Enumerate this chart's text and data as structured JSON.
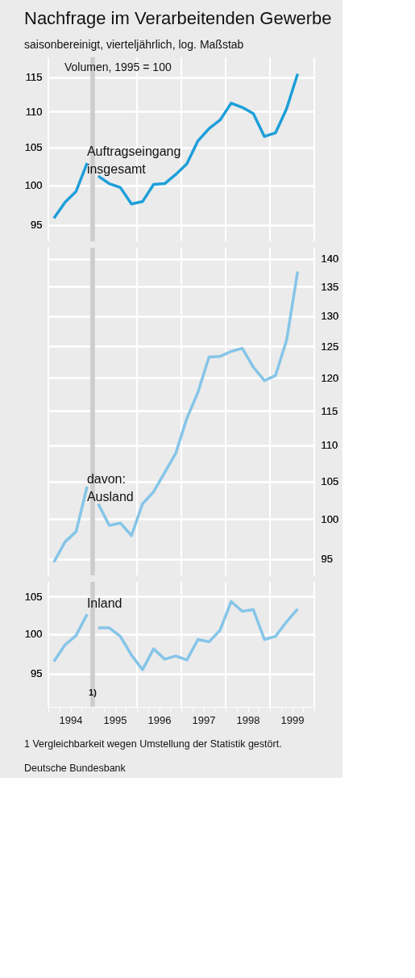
{
  "chart_data": [
    {
      "type": "line",
      "title": "Nachfrage im Verarbeitenden Gewerbe",
      "subtitle": "saisonbereinigt, vierteljährlich, log. Maßstab",
      "ylabel": "Volumen, 1995 = 100",
      "x": [
        1994.125,
        1994.375,
        1994.625,
        1994.875,
        1995.0,
        1995.125,
        1995.375,
        1995.625,
        1995.875,
        1996.125,
        1996.375,
        1996.625,
        1996.875,
        1997.125,
        1997.375,
        1997.625,
        1997.875,
        1998.125,
        1998.375,
        1998.625,
        1998.875,
        1999.125,
        1999.375,
        1999.625
      ],
      "xlim": [
        1994,
        2000
      ],
      "xticks": [
        {
          "value": 1994,
          "label": null
        },
        {
          "value": 1996,
          "label": null
        },
        {
          "value": 1997,
          "label": null
        },
        {
          "value": 1998,
          "label": null
        },
        {
          "value": 1999,
          "label": null
        },
        {
          "value": 2000,
          "label": null
        }
      ],
      "ylim": [
        93,
        118
      ],
      "yticks": [
        95,
        100,
        105,
        110,
        115
      ],
      "log": true,
      "grid": true,
      "tick_labels": "y",
      "bands": [
        {
          "axis": "x",
          "from": 1994.95,
          "to": 1995.05,
          "color": "#cccccc"
        }
      ],
      "series": [
        {
          "name": "Auftragseingang insgesamt",
          "color": "#1e9fd9",
          "values": [
            95.8,
            97.8,
            99.2,
            102.9,
            null,
            101.2,
            100.2,
            99.7,
            97.6,
            97.9,
            100.1,
            100.2,
            101.4,
            102.8,
            105.9,
            107.6,
            108.8,
            111.2,
            110.6,
            109.7,
            106.5,
            107.0,
            110.4,
            115.5
          ]
        }
      ]
    },
    {
      "type": "line",
      "annotations": [
        "davon:"
      ],
      "x": [
        1994.125,
        1994.375,
        1994.625,
        1994.875,
        1995.0,
        1995.125,
        1995.375,
        1995.625,
        1995.875,
        1996.125,
        1996.375,
        1996.625,
        1996.875,
        1997.125,
        1997.375,
        1997.625,
        1997.875,
        1998.125,
        1998.375,
        1998.625,
        1998.875,
        1999.125,
        1999.375,
        1999.625
      ],
      "xlim": [
        1994,
        2000
      ],
      "xticks": [
        {
          "value": 1994,
          "label": null
        },
        {
          "value": 1996,
          "label": null
        },
        {
          "value": 1997,
          "label": null
        },
        {
          "value": 1998,
          "label": null
        },
        {
          "value": 1999,
          "label": null
        },
        {
          "value": 2000,
          "label": null
        }
      ],
      "y2lim": [
        93,
        142
      ],
      "y2ticks": [
        95,
        100,
        105,
        110,
        115,
        120,
        125,
        130,
        135,
        140
      ],
      "log": "y2",
      "grid": true,
      "tick_labels": "y",
      "bands": [
        {
          "axis": "x",
          "from": 1994.95,
          "to": 1995.05,
          "color": "#cccccc"
        }
      ],
      "series": [
        {
          "name": "Ausland",
          "color": "#85c5e8",
          "axis": "y2",
          "values": [
            94.6,
            97.1,
            98.4,
            104.3,
            null,
            102.0,
            99.2,
            99.5,
            97.9,
            102.0,
            103.6,
            106.2,
            108.9,
            113.9,
            117.8,
            123.3,
            123.4,
            124.2,
            124.7,
            121.7,
            119.6,
            120.4,
            126.0,
            137.7
          ]
        }
      ]
    },
    {
      "type": "line",
      "annotations": [
        "1 Vergleichbarkeit wegen Umstellung der Statistik gestört.",
        "Deutsche Bundesbank"
      ],
      "x": [
        1994.125,
        1994.375,
        1994.625,
        1994.875,
        1995.0,
        1995.125,
        1995.375,
        1995.625,
        1995.875,
        1996.125,
        1996.375,
        1996.625,
        1996.875,
        1997.125,
        1997.375,
        1997.625,
        1997.875,
        1998.125,
        1998.375,
        1998.625,
        1998.875,
        1999.125,
        1999.375,
        1999.625
      ],
      "xlim": [
        1994,
        2000
      ],
      "xticks": [
        {
          "value": 1994,
          "label": null
        },
        {
          "value": 1994.25,
          "label": null
        },
        {
          "value": 1994.5,
          "label": "1994"
        },
        {
          "value": 1994.75,
          "label": null
        },
        {
          "value": 1995,
          "label": null
        },
        {
          "value": 1995.25,
          "label": null
        },
        {
          "value": 1995.5,
          "label": "1995"
        },
        {
          "value": 1995.75,
          "label": null
        },
        {
          "value": 1996,
          "label": null
        },
        {
          "value": 1996.25,
          "label": null
        },
        {
          "value": 1996.5,
          "label": "1996"
        },
        {
          "value": 1996.75,
          "label": null
        },
        {
          "value": 1997,
          "label": null
        },
        {
          "value": 1997.25,
          "label": null
        },
        {
          "value": 1997.5,
          "label": "1997"
        },
        {
          "value": 1997.75,
          "label": null
        },
        {
          "value": 1998,
          "label": null
        },
        {
          "value": 1998.25,
          "label": null
        },
        {
          "value": 1998.5,
          "label": "1998"
        },
        {
          "value": 1998.75,
          "label": null
        },
        {
          "value": 1999,
          "label": null
        },
        {
          "value": 1999.25,
          "label": null
        },
        {
          "value": 1999.5,
          "label": "1999"
        },
        {
          "value": 1999.75,
          "label": null
        },
        {
          "value": 2000,
          "label": null
        }
      ],
      "ylim": [
        91,
        107
      ],
      "yticks": [
        95,
        100,
        105
      ],
      "log": true,
      "grid": true,
      "bands": [
        {
          "axis": "x",
          "from": 1994.95,
          "to": 1995.05,
          "color": "#cccccc",
          "label": "1)"
        }
      ],
      "series": [
        {
          "name": "Inland",
          "color": "#85c5e8",
          "values": [
            96.5,
            98.6,
            99.8,
            102.6,
            null,
            100.8,
            100.8,
            99.7,
            97.3,
            95.5,
            98.1,
            96.8,
            97.2,
            96.7,
            99.3,
            99.0,
            100.5,
            104.3,
            103.0,
            103.2,
            99.3,
            99.7,
            101.6,
            103.3
          ]
        }
      ]
    }
  ]
}
